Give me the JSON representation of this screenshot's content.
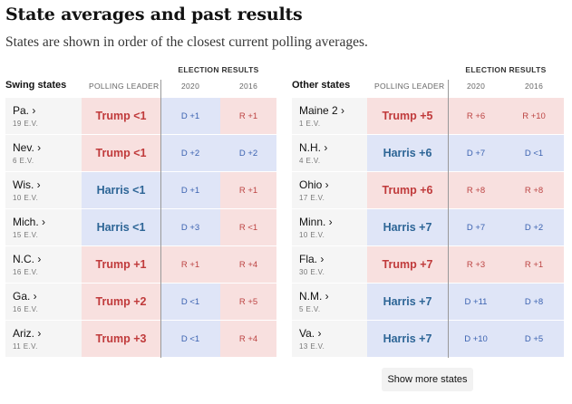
{
  "title": "State averages and past results",
  "subtitle": "States are shown in order of the closest current polling averages.",
  "headers": {
    "election_results": "ELECTION RESULTS",
    "polling_leader": "POLLING LEADER",
    "y2020": "2020",
    "y2016": "2016"
  },
  "tables": [
    {
      "group": "Swing states",
      "rows": [
        {
          "state": "Pa. ›",
          "ev": "19 E.V.",
          "leader": "Trump <1",
          "leader_party": "R",
          "r2020": "D +1",
          "r2020_party": "D",
          "r2016": "R +1",
          "r2016_party": "R"
        },
        {
          "state": "Nev. ›",
          "ev": "6 E.V.",
          "leader": "Trump <1",
          "leader_party": "R",
          "r2020": "D +2",
          "r2020_party": "D",
          "r2016": "D +2",
          "r2016_party": "D"
        },
        {
          "state": "Wis. ›",
          "ev": "10 E.V.",
          "leader": "Harris <1",
          "leader_party": "D",
          "r2020": "D +1",
          "r2020_party": "D",
          "r2016": "R +1",
          "r2016_party": "R"
        },
        {
          "state": "Mich. ›",
          "ev": "15 E.V.",
          "leader": "Harris <1",
          "leader_party": "D",
          "r2020": "D +3",
          "r2020_party": "D",
          "r2016": "R <1",
          "r2016_party": "R"
        },
        {
          "state": "N.C. ›",
          "ev": "16 E.V.",
          "leader": "Trump +1",
          "leader_party": "R",
          "r2020": "R +1",
          "r2020_party": "R",
          "r2016": "R +4",
          "r2016_party": "R"
        },
        {
          "state": "Ga. ›",
          "ev": "16 E.V.",
          "leader": "Trump +2",
          "leader_party": "R",
          "r2020": "D <1",
          "r2020_party": "D",
          "r2016": "R +5",
          "r2016_party": "R"
        },
        {
          "state": "Ariz. ›",
          "ev": "11 E.V.",
          "leader": "Trump +3",
          "leader_party": "R",
          "r2020": "D <1",
          "r2020_party": "D",
          "r2016": "R +4",
          "r2016_party": "R"
        }
      ]
    },
    {
      "group": "Other states",
      "rows": [
        {
          "state": "Maine 2 ›",
          "ev": "1 E.V.",
          "leader": "Trump +5",
          "leader_party": "R",
          "r2020": "R +6",
          "r2020_party": "R",
          "r2016": "R +10",
          "r2016_party": "R"
        },
        {
          "state": "N.H. ›",
          "ev": "4 E.V.",
          "leader": "Harris +6",
          "leader_party": "D",
          "r2020": "D +7",
          "r2020_party": "D",
          "r2016": "D <1",
          "r2016_party": "D"
        },
        {
          "state": "Ohio ›",
          "ev": "17 E.V.",
          "leader": "Trump +6",
          "leader_party": "R",
          "r2020": "R +8",
          "r2020_party": "R",
          "r2016": "R +8",
          "r2016_party": "R"
        },
        {
          "state": "Minn. ›",
          "ev": "10 E.V.",
          "leader": "Harris +7",
          "leader_party": "D",
          "r2020": "D +7",
          "r2020_party": "D",
          "r2016": "D +2",
          "r2016_party": "D"
        },
        {
          "state": "Fla. ›",
          "ev": "30 E.V.",
          "leader": "Trump +7",
          "leader_party": "R",
          "r2020": "R +3",
          "r2020_party": "R",
          "r2016": "R +1",
          "r2016_party": "R"
        },
        {
          "state": "N.M. ›",
          "ev": "5 E.V.",
          "leader": "Harris +7",
          "leader_party": "D",
          "r2020": "D +11",
          "r2020_party": "D",
          "r2016": "D +8",
          "r2016_party": "D"
        },
        {
          "state": "Va. ›",
          "ev": "13 E.V.",
          "leader": "Harris +7",
          "leader_party": "D",
          "r2020": "D +10",
          "r2020_party": "D",
          "r2016": "D +5",
          "r2016_party": "D"
        }
      ]
    }
  ],
  "show_more_label": "Show more states",
  "colors": {
    "red_bg": "#f8e0df",
    "blue_bg": "#dfe5f7",
    "red_text": "#c03a3b",
    "blue_text": "#2d6596",
    "state_bg": "#f5f5f5"
  }
}
